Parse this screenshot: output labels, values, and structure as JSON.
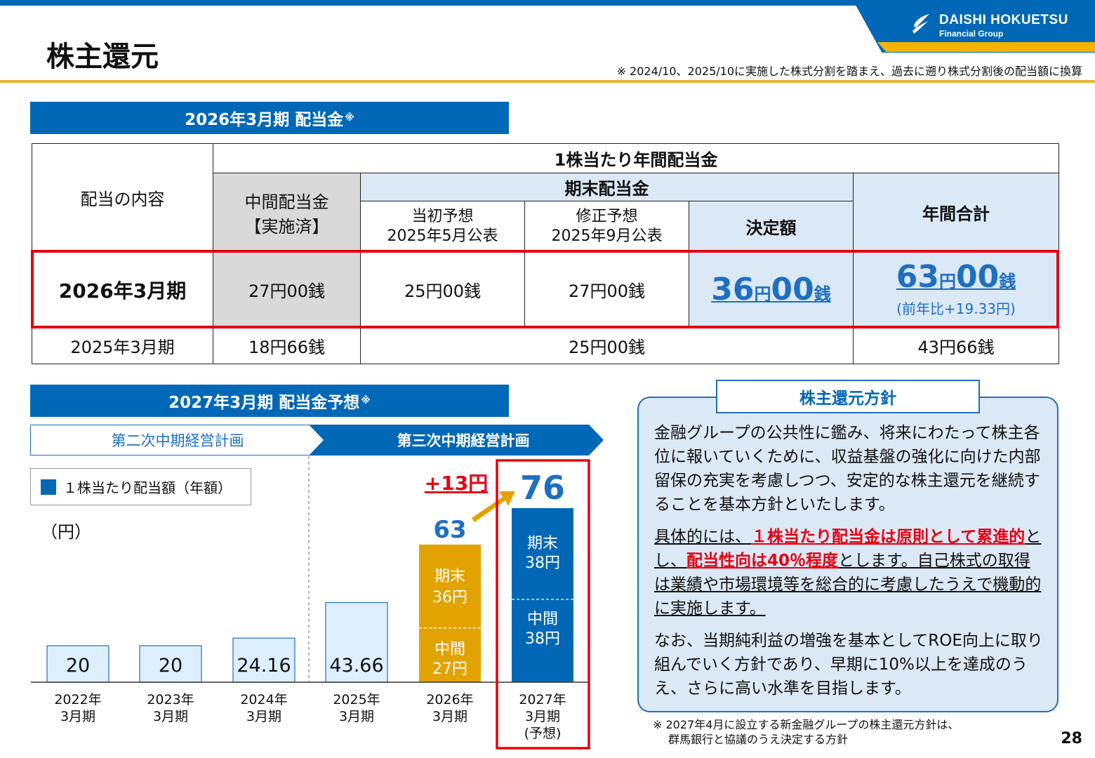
{
  "header": {
    "logo_name": "DAISHI HOKUETSU",
    "logo_sub": "Financial Group",
    "title": "株主還元",
    "note": "※ 2024/10、2025/10に実施した株式分割を踏まえ、過去に遡り株式分割後の配当額に換算"
  },
  "section1": {
    "title": "2026年3月期 配当金",
    "mark": "※"
  },
  "table": {
    "col_content": "配当の内容",
    "col_annual": "1株当たり年間配当金",
    "col_interim_1": "中間配当金",
    "col_interim_2": "【実施済】",
    "col_yearend": "期末配当金",
    "col_initial_1": "当初予想",
    "col_initial_2": "2025年5月公表",
    "col_revised_1": "修正予想",
    "col_revised_2": "2025年9月公表",
    "col_decided": "決定額",
    "col_total": "年間合計",
    "row1": {
      "label": "2026年3月期",
      "interim": "27円00銭",
      "initial": "25円00銭",
      "revised": "27円00銭",
      "decided_num1": "36",
      "decided_unit1": "円",
      "decided_num2": "00",
      "decided_unit2": "銭",
      "total_num1": "63",
      "total_unit1": "円",
      "total_num2": "00",
      "total_unit2": "銭",
      "total_sub": "(前年比+19.33円)"
    },
    "row2": {
      "label": "2025年3月期",
      "interim": "18円66銭",
      "yearend": "25円00銭",
      "total": "43円66銭"
    }
  },
  "section2": {
    "title": "2027年3月期 配当金予想",
    "mark": "※"
  },
  "plans": {
    "second": "第二次中期経営計画",
    "third": "第三次中期経営計画"
  },
  "legend": {
    "label": "１株当たり配当額（年額）"
  },
  "unit": "（円）",
  "chart_data": {
    "type": "bar",
    "categories": [
      "2022年\n3月期",
      "2023年\n3月期",
      "2024年\n3月期",
      "2025年\n3月期",
      "2026年\n3月期",
      "2027年\n3月期\n(予想)"
    ],
    "values": [
      20,
      20,
      24.16,
      43.66,
      63,
      76
    ],
    "value_labels": [
      "20",
      "20",
      "24.16",
      "43.66",
      "63",
      "76"
    ],
    "stack_labels": {
      "2026": {
        "interim": "中間\n27円",
        "yearend": "期末\n36円",
        "interim_value": 27,
        "yearend_value": 36
      },
      "2027": {
        "interim": "中間\n38円",
        "yearend": "期末\n38円",
        "interim_value": 38,
        "yearend_value": 38
      }
    },
    "increase_label": "+13円",
    "colors": {
      "past": "#ddefff",
      "y2026": "#e2a300",
      "y2027": "#0068b7",
      "highlight": "#e60012"
    },
    "ylim": [
      0,
      80
    ]
  },
  "policy": {
    "title": "株主還元方針",
    "p1": "金融グループの公共性に鑑み、将来にわたって株主各位に報いていくために、収益基盤の強化に向けた内部留保の充実を考慮しつつ、安定的な株主還元を継続することを基本方針といたします。",
    "p2_a": "具体的には、",
    "p2_b": "１株当たり配当金は原則として累進的",
    "p2_c": "とし、",
    "p2_d": "配当性向は40％程度",
    "p2_e": "とします。自己株式の取得は業績や市場環境等を総合的に考慮したうえで機動的に実施します。",
    "p3": "なお、当期純利益の増強を基本としてROE向上に取り組んでいく方針であり、早期に10%以上を達成のうえ、さらに高い水準を目指します。"
  },
  "footnote_1": "※ 2027年4月に設立する新金融グループの株主還元方針は、",
  "footnote_2": "群馬銀行と協議のうえ決定する方針",
  "page_number": "28"
}
